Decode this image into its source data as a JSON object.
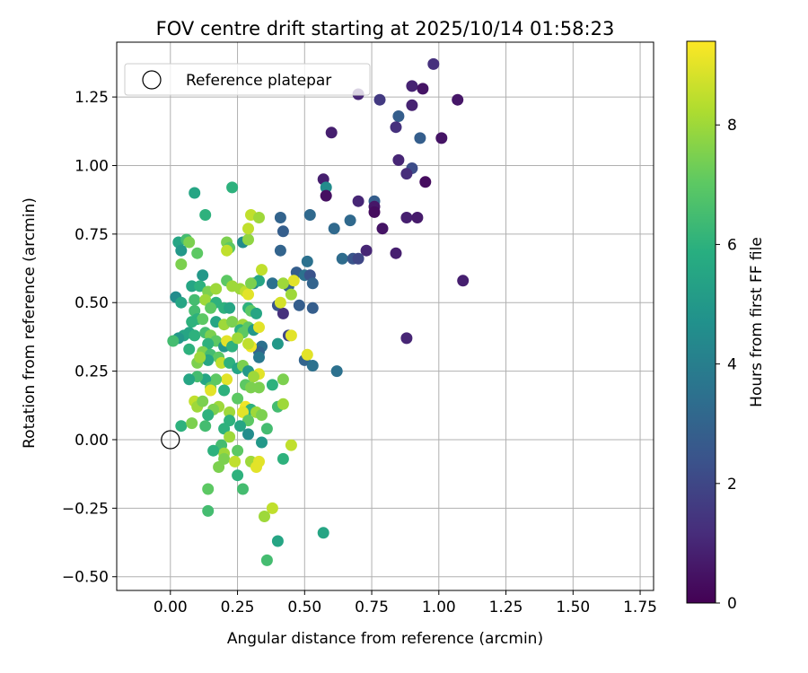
{
  "chart_data": {
    "type": "scatter",
    "title": "FOV centre drift starting at 2025/10/14 01:58:23",
    "xlabel": "Angular distance from reference (arcmin)",
    "ylabel": "Rotation from reference (arcmin)",
    "xlim": [
      -0.2,
      1.8
    ],
    "ylim": [
      -0.55,
      1.45
    ],
    "xticks": [
      0.0,
      0.25,
      0.5,
      0.75,
      1.0,
      1.25,
      1.5,
      1.75
    ],
    "xtick_labels": [
      "0.00",
      "0.25",
      "0.50",
      "0.75",
      "1.00",
      "1.25",
      "1.50",
      "1.75"
    ],
    "yticks": [
      -0.5,
      -0.25,
      0.0,
      0.25,
      0.5,
      0.75,
      1.0,
      1.25
    ],
    "ytick_labels": [
      "−0.50",
      "−0.25",
      "0.00",
      "0.25",
      "0.50",
      "0.75",
      "1.00",
      "1.25"
    ],
    "grid": true,
    "legend": {
      "placement": "upper-left",
      "entries": [
        "Reference platepar"
      ]
    },
    "reference_point": {
      "x": 0.0,
      "y": 0.0,
      "label": "Reference platepar"
    },
    "colorbar": {
      "label": "Hours from first FF file",
      "colormap": "viridis",
      "range": [
        0,
        9.4
      ],
      "ticks": [
        0,
        2,
        4,
        6,
        8
      ],
      "tick_labels": [
        "0",
        "2",
        "4",
        "6",
        "8"
      ],
      "stops": [
        "#440154",
        "#472d7b",
        "#3b528b",
        "#2c728e",
        "#21918c",
        "#28ae80",
        "#5ec962",
        "#addc30",
        "#fde725"
      ]
    },
    "series": [
      {
        "points": [
          [
            0.98,
            1.37,
            1.3
          ],
          [
            0.9,
            1.29,
            0.9
          ],
          [
            0.94,
            1.28,
            0.5
          ],
          [
            1.07,
            1.24,
            0.6
          ],
          [
            0.7,
            1.26,
            1.0
          ],
          [
            0.78,
            1.24,
            1.6
          ],
          [
            0.9,
            1.22,
            0.9
          ],
          [
            0.85,
            1.18,
            2.8
          ],
          [
            0.84,
            1.14,
            1.3
          ],
          [
            0.6,
            1.12,
            0.8
          ],
          [
            0.93,
            1.1,
            2.8
          ],
          [
            1.01,
            1.1,
            0.5
          ],
          [
            0.85,
            1.02,
            1.0
          ],
          [
            0.9,
            0.99,
            2.2
          ],
          [
            0.88,
            0.97,
            1.2
          ],
          [
            0.95,
            0.94,
            0.3
          ],
          [
            0.57,
            0.95,
            0.8
          ],
          [
            0.58,
            0.92,
            4.5
          ],
          [
            0.58,
            0.89,
            0.4
          ],
          [
            0.7,
            0.87,
            1.0
          ],
          [
            0.76,
            0.87,
            2.8
          ],
          [
            0.76,
            0.85,
            0.6
          ],
          [
            0.76,
            0.83,
            0.3
          ],
          [
            0.88,
            0.81,
            0.8
          ],
          [
            0.92,
            0.81,
            0.7
          ],
          [
            0.41,
            0.81,
            3.0
          ],
          [
            0.52,
            0.82,
            3.2
          ],
          [
            0.67,
            0.8,
            3.2
          ],
          [
            0.79,
            0.77,
            0.5
          ],
          [
            0.61,
            0.77,
            3.2
          ],
          [
            0.42,
            0.76,
            2.8
          ],
          [
            0.73,
            0.69,
            1.0
          ],
          [
            0.84,
            0.68,
            0.8
          ],
          [
            0.64,
            0.66,
            3.3
          ],
          [
            0.68,
            0.66,
            2.5
          ],
          [
            0.7,
            0.66,
            2.0
          ],
          [
            0.41,
            0.69,
            3.0
          ],
          [
            0.51,
            0.65,
            3.5
          ],
          [
            0.47,
            0.61,
            2.8
          ],
          [
            0.5,
            0.6,
            3.5
          ],
          [
            0.52,
            0.6,
            2.4
          ],
          [
            0.53,
            0.57,
            3.0
          ],
          [
            1.09,
            0.58,
            0.8
          ],
          [
            0.38,
            0.57,
            3.5
          ],
          [
            0.31,
            0.57,
            4.3
          ],
          [
            0.33,
            0.58,
            5.5
          ],
          [
            0.44,
            0.56,
            3.0
          ],
          [
            0.4,
            0.49,
            2.5
          ],
          [
            0.48,
            0.49,
            2.8
          ],
          [
            0.53,
            0.48,
            2.8
          ],
          [
            0.42,
            0.46,
            1.3
          ],
          [
            0.41,
            0.5,
            8.8
          ],
          [
            0.45,
            0.53,
            8.0
          ],
          [
            0.46,
            0.58,
            9.0
          ],
          [
            0.42,
            0.57,
            8.0
          ],
          [
            0.88,
            0.37,
            1.0
          ],
          [
            0.44,
            0.38,
            2.0
          ],
          [
            0.45,
            0.38,
            9.0
          ],
          [
            0.4,
            0.35,
            5.0
          ],
          [
            0.34,
            0.34,
            3.5
          ],
          [
            0.33,
            0.32,
            3.0
          ],
          [
            0.33,
            0.3,
            3.8
          ],
          [
            0.5,
            0.29,
            3.0
          ],
          [
            0.51,
            0.31,
            9.0
          ],
          [
            0.53,
            0.27,
            3.5
          ],
          [
            0.62,
            0.25,
            3.5
          ],
          [
            0.34,
            0.62,
            8.5
          ],
          [
            0.27,
            0.72,
            4.5
          ],
          [
            0.29,
            0.73,
            7.8
          ],
          [
            0.29,
            0.77,
            8.5
          ],
          [
            0.3,
            0.82,
            8.5
          ],
          [
            0.33,
            0.81,
            8.0
          ],
          [
            0.23,
            0.92,
            6.0
          ],
          [
            0.09,
            0.9,
            5.5
          ],
          [
            0.13,
            0.82,
            6.0
          ],
          [
            0.03,
            0.72,
            5.5
          ],
          [
            0.06,
            0.73,
            6.5
          ],
          [
            0.07,
            0.72,
            7.5
          ],
          [
            0.04,
            0.69,
            5.0
          ],
          [
            0.21,
            0.72,
            7.5
          ],
          [
            0.22,
            0.7,
            7.0
          ],
          [
            0.21,
            0.69,
            8.5
          ],
          [
            0.1,
            0.68,
            7.0
          ],
          [
            0.04,
            0.64,
            7.5
          ],
          [
            0.12,
            0.6,
            5.0
          ],
          [
            0.08,
            0.56,
            5.5
          ],
          [
            0.11,
            0.56,
            6.0
          ],
          [
            0.02,
            0.52,
            4.5
          ],
          [
            0.04,
            0.5,
            5.5
          ],
          [
            0.09,
            0.51,
            6.5
          ],
          [
            0.14,
            0.54,
            7.5
          ],
          [
            0.17,
            0.55,
            8.0
          ],
          [
            0.21,
            0.58,
            7.0
          ],
          [
            0.23,
            0.56,
            8.0
          ],
          [
            0.26,
            0.55,
            8.0
          ],
          [
            0.28,
            0.54,
            8.5
          ],
          [
            0.29,
            0.53,
            9.0
          ],
          [
            0.3,
            0.57,
            7.5
          ],
          [
            0.13,
            0.51,
            8.0
          ],
          [
            0.17,
            0.5,
            6.0
          ],
          [
            0.2,
            0.48,
            6.0
          ],
          [
            0.15,
            0.48,
            7.0
          ],
          [
            0.22,
            0.48,
            5.5
          ],
          [
            0.29,
            0.48,
            6.0
          ],
          [
            0.3,
            0.47,
            7.0
          ],
          [
            0.32,
            0.46,
            5.5
          ],
          [
            0.09,
            0.47,
            6.5
          ],
          [
            0.1,
            0.44,
            6.0
          ],
          [
            0.12,
            0.44,
            7.0
          ],
          [
            0.08,
            0.43,
            6.0
          ],
          [
            0.17,
            0.43,
            5.5
          ],
          [
            0.2,
            0.42,
            8.0
          ],
          [
            0.23,
            0.43,
            7.5
          ],
          [
            0.27,
            0.42,
            8.0
          ],
          [
            0.26,
            0.4,
            6.0
          ],
          [
            0.27,
            0.39,
            7.0
          ],
          [
            0.29,
            0.41,
            7.0
          ],
          [
            0.31,
            0.4,
            5.0
          ],
          [
            0.33,
            0.41,
            9.0
          ],
          [
            0.07,
            0.39,
            5.5
          ],
          [
            0.05,
            0.38,
            5.5
          ],
          [
            0.03,
            0.37,
            5.0
          ],
          [
            0.01,
            0.36,
            6.5
          ],
          [
            0.09,
            0.38,
            6.0
          ],
          [
            0.13,
            0.39,
            6.5
          ],
          [
            0.15,
            0.38,
            7.5
          ],
          [
            0.17,
            0.36,
            7.0
          ],
          [
            0.14,
            0.35,
            6.0
          ],
          [
            0.2,
            0.34,
            5.0
          ],
          [
            0.21,
            0.36,
            9.0
          ],
          [
            0.23,
            0.34,
            6.0
          ],
          [
            0.25,
            0.37,
            8.0
          ],
          [
            0.3,
            0.34,
            9.2
          ],
          [
            0.29,
            0.35,
            8.5
          ],
          [
            0.07,
            0.33,
            6.0
          ],
          [
            0.12,
            0.32,
            7.5
          ],
          [
            0.15,
            0.31,
            6.5
          ],
          [
            0.18,
            0.3,
            7.0
          ],
          [
            0.14,
            0.29,
            5.5
          ],
          [
            0.1,
            0.28,
            7.5
          ],
          [
            0.11,
            0.3,
            8.0
          ],
          [
            0.19,
            0.28,
            8.5
          ],
          [
            0.22,
            0.28,
            6.0
          ],
          [
            0.25,
            0.26,
            5.5
          ],
          [
            0.27,
            0.27,
            7.5
          ],
          [
            0.29,
            0.25,
            5.0
          ],
          [
            0.33,
            0.24,
            9.0
          ],
          [
            0.31,
            0.23,
            8.0
          ],
          [
            0.21,
            0.22,
            9.0
          ],
          [
            0.17,
            0.22,
            7.0
          ],
          [
            0.13,
            0.22,
            5.5
          ],
          [
            0.1,
            0.23,
            6.5
          ],
          [
            0.07,
            0.22,
            5.5
          ],
          [
            0.15,
            0.19,
            7.0
          ],
          [
            0.15,
            0.18,
            9.0
          ],
          [
            0.2,
            0.18,
            6.0
          ],
          [
            0.28,
            0.2,
            7.0
          ],
          [
            0.3,
            0.19,
            7.5
          ],
          [
            0.33,
            0.19,
            7.5
          ],
          [
            0.38,
            0.2,
            6.0
          ],
          [
            0.42,
            0.22,
            7.5
          ],
          [
            0.09,
            0.14,
            8.5
          ],
          [
            0.1,
            0.12,
            8.0
          ],
          [
            0.12,
            0.14,
            7.5
          ],
          [
            0.18,
            0.12,
            8.0
          ],
          [
            0.16,
            0.11,
            7.5
          ],
          [
            0.22,
            0.1,
            8.0
          ],
          [
            0.25,
            0.15,
            7.0
          ],
          [
            0.28,
            0.12,
            9.2
          ],
          [
            0.3,
            0.11,
            6.0
          ],
          [
            0.32,
            0.1,
            8.0
          ],
          [
            0.34,
            0.09,
            7.5
          ],
          [
            0.4,
            0.12,
            6.5
          ],
          [
            0.42,
            0.13,
            8.0
          ],
          [
            0.14,
            0.09,
            6.0
          ],
          [
            0.22,
            0.07,
            6.0
          ],
          [
            0.27,
            0.1,
            9.0
          ],
          [
            0.29,
            0.07,
            7.0
          ],
          [
            0.04,
            0.05,
            6.0
          ],
          [
            0.08,
            0.06,
            7.5
          ],
          [
            0.13,
            0.05,
            6.5
          ],
          [
            0.2,
            0.04,
            6.0
          ],
          [
            0.26,
            0.05,
            5.5
          ],
          [
            0.36,
            0.04,
            6.5
          ],
          [
            0.22,
            0.01,
            8.0
          ],
          [
            0.29,
            0.02,
            4.5
          ],
          [
            0.34,
            -0.01,
            5.0
          ],
          [
            0.19,
            -0.02,
            6.5
          ],
          [
            0.2,
            -0.05,
            8.0
          ],
          [
            0.16,
            -0.04,
            6.0
          ],
          [
            0.2,
            -0.07,
            7.5
          ],
          [
            0.25,
            -0.04,
            7.0
          ],
          [
            0.3,
            -0.08,
            8.0
          ],
          [
            0.33,
            -0.08,
            9.0
          ],
          [
            0.32,
            -0.1,
            9.0
          ],
          [
            0.42,
            -0.07,
            6.0
          ],
          [
            0.45,
            -0.02,
            8.5
          ],
          [
            0.18,
            -0.1,
            7.5
          ],
          [
            0.24,
            -0.08,
            8.5
          ],
          [
            0.25,
            -0.13,
            6.0
          ],
          [
            0.14,
            -0.18,
            7.0
          ],
          [
            0.27,
            -0.18,
            6.5
          ],
          [
            0.38,
            -0.25,
            8.5
          ],
          [
            0.35,
            -0.28,
            8.0
          ],
          [
            0.14,
            -0.26,
            6.5
          ],
          [
            0.4,
            -0.37,
            5.5
          ],
          [
            0.57,
            -0.34,
            5.5
          ],
          [
            0.36,
            -0.44,
            6.5
          ]
        ]
      }
    ]
  }
}
